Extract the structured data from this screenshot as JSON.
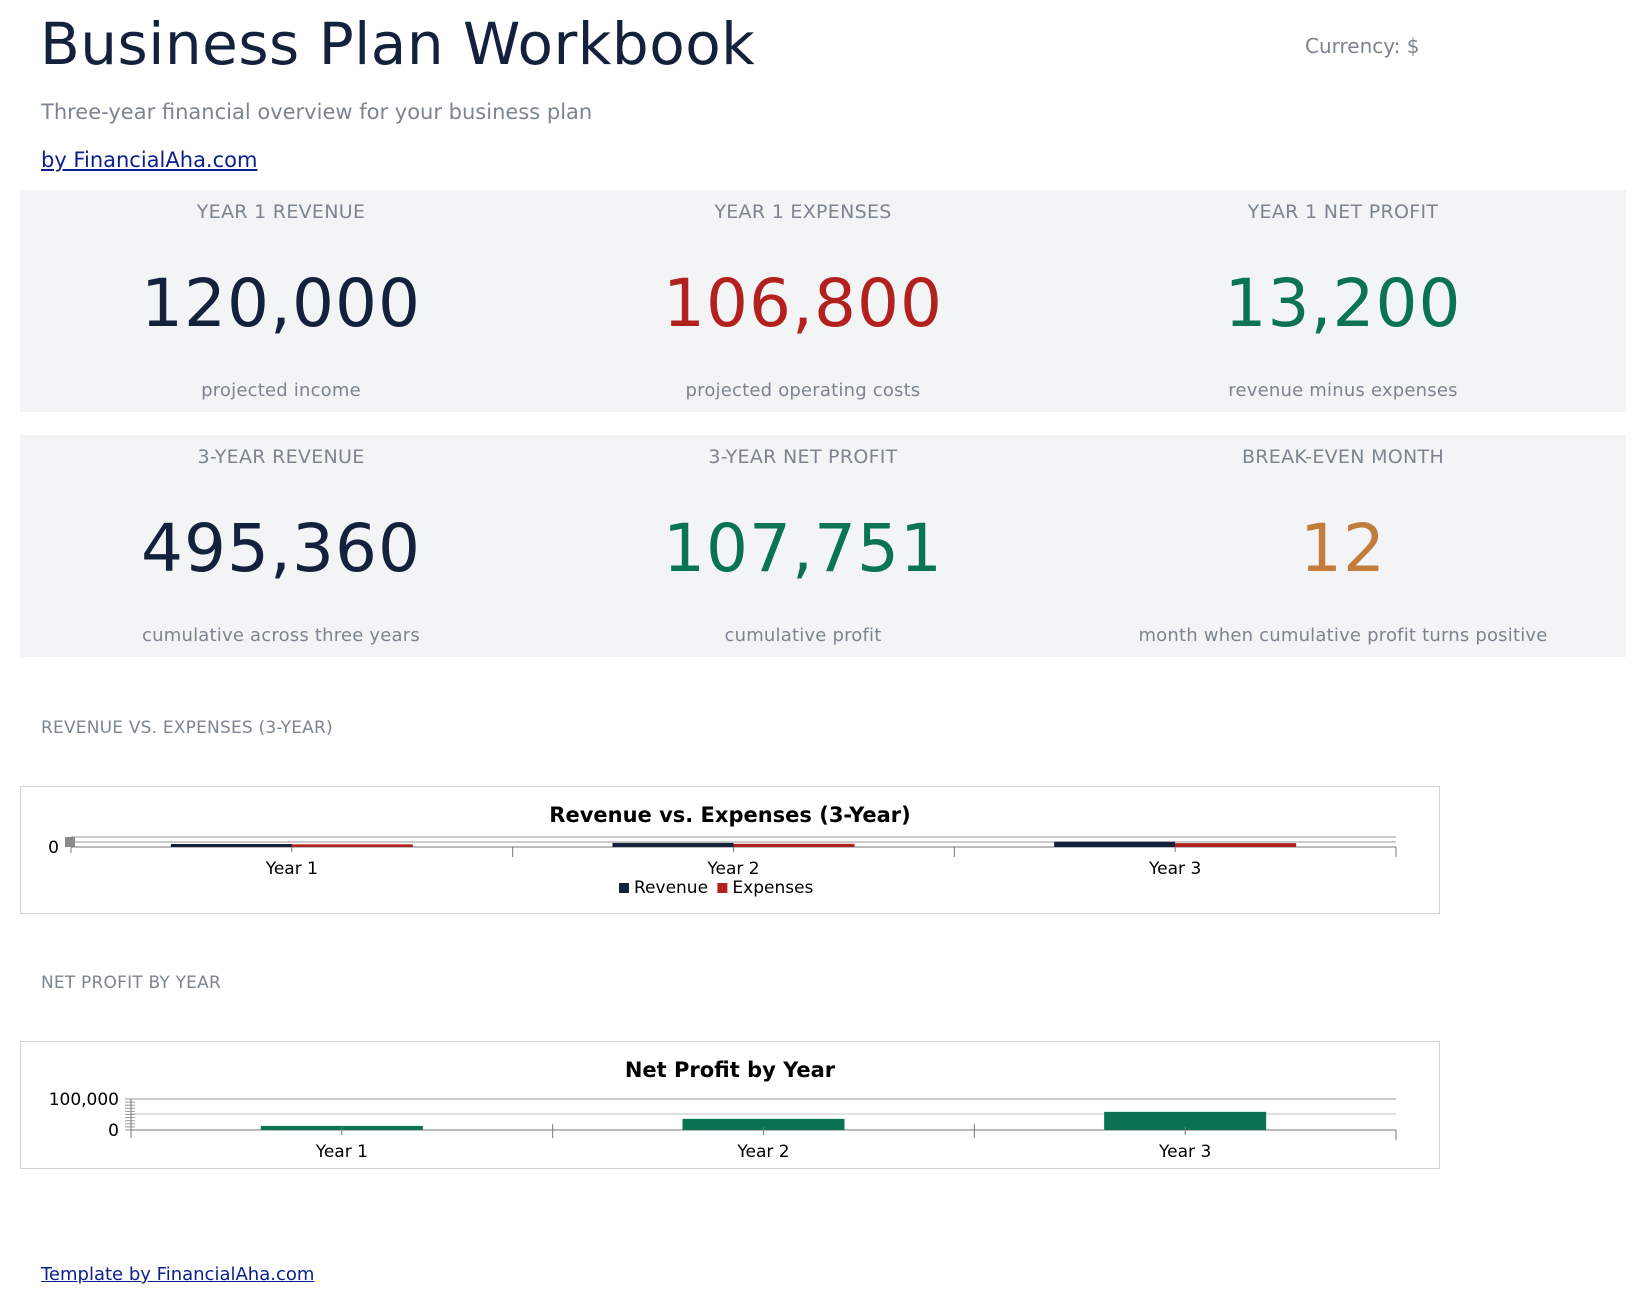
{
  "header": {
    "title": "Business Plan Workbook",
    "currency": "Currency: $",
    "subtitle": "Three-year financial overview for your business plan",
    "byline": "by FinancialAha.com"
  },
  "kpis_row1": [
    {
      "label": "YEAR 1 REVENUE",
      "value": "120,000",
      "note": "projected income",
      "color": "#14213d"
    },
    {
      "label": "YEAR 1 EXPENSES",
      "value": "106,800",
      "note": "projected operating costs",
      "color": "#b3211f"
    },
    {
      "label": "YEAR 1 NET PROFIT",
      "value": "13,200",
      "note": "revenue minus expenses",
      "color": "#0a7352"
    }
  ],
  "kpis_row2": [
    {
      "label": "3-YEAR REVENUE",
      "value": "495,360",
      "note": "cumulative across three years",
      "color": "#14213d"
    },
    {
      "label": "3-YEAR NET PROFIT",
      "value": "107,751",
      "note": "cumulative profit",
      "color": "#0a7352"
    },
    {
      "label": "BREAK-EVEN MONTH",
      "value": "12",
      "note": "month when cumulative profit turns positive",
      "color": "#c27c3c"
    }
  ],
  "sections": {
    "revenue_expenses_label": "REVENUE VS. EXPENSES (3-YEAR)",
    "net_profit_label": "NET PROFIT BY YEAR"
  },
  "footer": {
    "link": "Template by FinancialAha.com"
  },
  "chart_data": [
    {
      "type": "bar",
      "title": "Revenue vs. Expenses (3-Year)",
      "categories": [
        "Year 1",
        "Year 2",
        "Year 3"
      ],
      "series": [
        {
          "name": "Revenue",
          "color": "#14213d",
          "values": [
            120000,
            163200,
            212160
          ]
        },
        {
          "name": "Expenses",
          "color": "#b3211f",
          "values": [
            106800,
            127200,
            153409
          ]
        }
      ],
      "y_tick_labels": [
        "0"
      ],
      "legend": "bottom"
    },
    {
      "type": "bar",
      "title": "Net Profit by Year",
      "categories": [
        "Year 1",
        "Year 2",
        "Year 3"
      ],
      "series": [
        {
          "color": "#0a7352",
          "values": [
            13200,
            36000,
            58551
          ]
        }
      ],
      "y_tick_labels": [
        "100,000",
        "0"
      ],
      "ylim": [
        0,
        100000
      ]
    }
  ]
}
